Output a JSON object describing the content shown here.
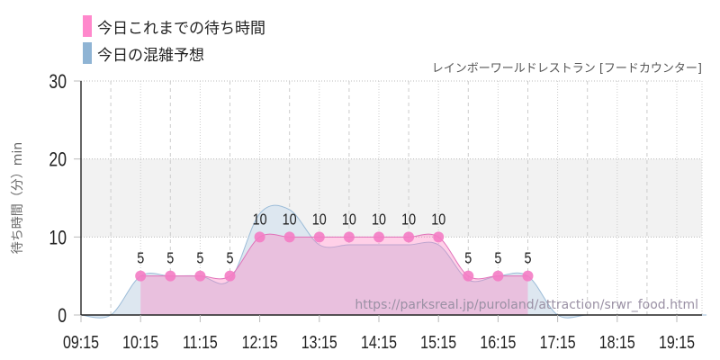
{
  "legend": [
    {
      "label": "今日これまでの待ち時間",
      "color": "#ff88cc"
    },
    {
      "label": "今日の混雑予想",
      "color": "#8fb4d4"
    }
  ],
  "subtitle": "レインボーワールドレストラン [フードカウンター]",
  "watermark": "https://parksreal.jp/puroland/attraction/srwr_food.html",
  "chart_data": {
    "type": "area",
    "title": "レインボーワールドレストラン [フードカウンター]",
    "ylabel": "待ち時間（分）min",
    "xlabel": "",
    "ylim": [
      0,
      30
    ],
    "yticks": [
      "0",
      "10",
      "20",
      "30"
    ],
    "xticks": [
      "09:15",
      "10:15",
      "11:15",
      "12:15",
      "13:15",
      "14:15",
      "15:15",
      "16:15",
      "17:15",
      "18:15",
      "19:15"
    ],
    "highlight_band": [
      10,
      20
    ],
    "series": [
      {
        "name": "今日これまでの待ち時間",
        "color": "#ff88cc",
        "x": [
          "10:15",
          "10:45",
          "11:15",
          "11:45",
          "12:15",
          "12:45",
          "13:15",
          "13:45",
          "14:15",
          "14:45",
          "15:15",
          "15:45",
          "16:15",
          "16:45"
        ],
        "values": [
          5,
          5,
          5,
          5,
          10,
          10,
          10,
          10,
          10,
          10,
          10,
          5,
          5,
          5
        ]
      },
      {
        "name": "今日の混雑予想",
        "color": "#8fb4d4",
        "x": [
          "09:15",
          "09:45",
          "10:15",
          "10:45",
          "11:15",
          "11:45",
          "12:15",
          "12:45",
          "13:15",
          "13:45",
          "14:15",
          "14:45",
          "15:15",
          "15:45",
          "16:15",
          "16:45",
          "17:15",
          "17:45",
          "18:15",
          "18:45",
          "19:15",
          "19:45"
        ],
        "values": [
          0,
          0,
          5,
          5,
          5,
          4.5,
          13,
          13.5,
          9,
          9,
          9,
          9,
          9,
          4.5,
          5,
          5,
          0,
          0,
          0,
          0,
          0,
          0
        ]
      }
    ]
  }
}
